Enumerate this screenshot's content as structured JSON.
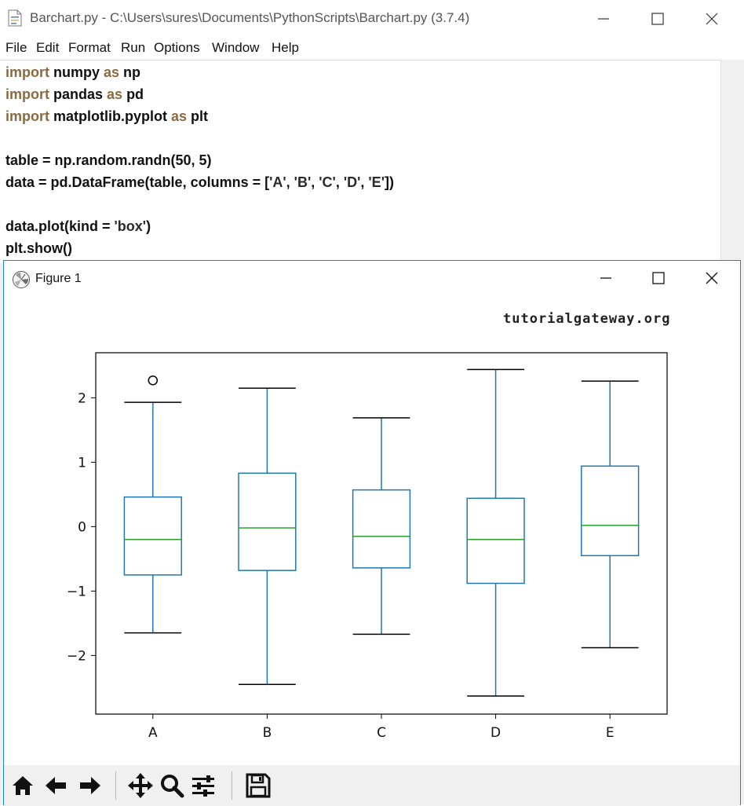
{
  "editor": {
    "title": "Barchart.py - C:\\Users\\sures\\Documents\\PythonScripts\\Barchart.py (3.7.4)",
    "menu": [
      "File",
      "Edit",
      "Format",
      "Run",
      "Options",
      "Window",
      "Help"
    ],
    "code": [
      {
        "parts": [
          {
            "t": "import",
            "k": "kw"
          },
          {
            "t": " numpy ",
            "k": ""
          },
          {
            "t": "as",
            "k": "kw"
          },
          {
            "t": " np",
            "k": ""
          }
        ]
      },
      {
        "parts": [
          {
            "t": "import",
            "k": "kw"
          },
          {
            "t": " pandas ",
            "k": ""
          },
          {
            "t": "as",
            "k": "kw"
          },
          {
            "t": " pd",
            "k": ""
          }
        ]
      },
      {
        "parts": [
          {
            "t": "import",
            "k": "kw"
          },
          {
            "t": " matplotlib.pyplot ",
            "k": ""
          },
          {
            "t": "as",
            "k": "kw"
          },
          {
            "t": " plt",
            "k": ""
          }
        ]
      },
      {
        "parts": []
      },
      {
        "parts": [
          {
            "t": "table = np.random.randn(50, 5)",
            "k": ""
          }
        ]
      },
      {
        "parts": [
          {
            "t": "data = pd.DataFrame(table, columns = [",
            "k": ""
          },
          {
            "t": "'A'",
            "k": "str"
          },
          {
            "t": ", ",
            "k": ""
          },
          {
            "t": "'B'",
            "k": "str"
          },
          {
            "t": ", ",
            "k": ""
          },
          {
            "t": "'C'",
            "k": "str"
          },
          {
            "t": ", ",
            "k": ""
          },
          {
            "t": "'D'",
            "k": "str"
          },
          {
            "t": ", ",
            "k": ""
          },
          {
            "t": "'E'",
            "k": "str"
          },
          {
            "t": "])",
            "k": ""
          }
        ]
      },
      {
        "parts": []
      },
      {
        "parts": [
          {
            "t": "data.plot(kind = ",
            "k": ""
          },
          {
            "t": "'box'",
            "k": "str"
          },
          {
            "t": ")",
            "k": ""
          }
        ]
      },
      {
        "parts": [
          {
            "t": "plt.show()",
            "k": ""
          }
        ]
      }
    ]
  },
  "figure": {
    "title": "Figure 1",
    "watermark": "tutorialgateway.org",
    "toolbar": [
      "home-icon",
      "back-arrow-icon",
      "forward-arrow-icon",
      "pan-icon",
      "zoom-icon",
      "configure-subplots-icon",
      "save-icon"
    ]
  },
  "colors": {
    "box": "#1f77b4",
    "median": "#2ca02c",
    "whisker_cap": "#000000",
    "keyword": "#8a6b3f",
    "accent_border": "#1883d7"
  },
  "chart_data": {
    "type": "box",
    "categories": [
      "A",
      "B",
      "C",
      "D",
      "E"
    ],
    "boxes": [
      {
        "name": "A",
        "whislo": -1.65,
        "q1": -0.75,
        "med": -0.2,
        "q3": 0.46,
        "whishi": 1.93,
        "fliers": [
          2.27
        ]
      },
      {
        "name": "B",
        "whislo": -2.45,
        "q1": -0.68,
        "med": -0.02,
        "q3": 0.83,
        "whishi": 2.15,
        "fliers": []
      },
      {
        "name": "C",
        "whislo": -1.67,
        "q1": -0.64,
        "med": -0.15,
        "q3": 0.57,
        "whishi": 1.69,
        "fliers": []
      },
      {
        "name": "D",
        "whislo": -2.63,
        "q1": -0.88,
        "med": -0.2,
        "q3": 0.44,
        "whishi": 2.44,
        "fliers": []
      },
      {
        "name": "E",
        "whislo": -1.88,
        "q1": -0.45,
        "med": 0.02,
        "q3": 0.94,
        "whishi": 2.26,
        "fliers": []
      }
    ],
    "yticks": [
      -2,
      -1,
      0,
      1,
      2
    ],
    "ytick_labels": [
      "−2",
      "−1",
      "0",
      "1",
      "2"
    ],
    "ylim": [
      -2.91,
      2.7
    ],
    "title": "",
    "xlabel": "",
    "ylabel": "",
    "grid": false,
    "legend": false
  }
}
